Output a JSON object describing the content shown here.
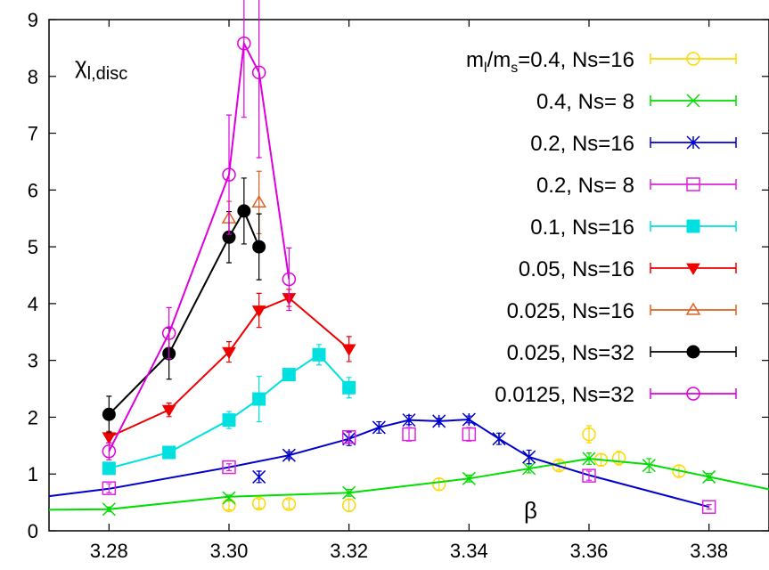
{
  "chart_data": {
    "type": "scatter",
    "title": "",
    "xlabel": "",
    "ylabel": "",
    "xlim": [
      3.27,
      3.39
    ],
    "ylim": [
      0,
      9
    ],
    "xticks": [
      3.28,
      3.3,
      3.32,
      3.34,
      3.36,
      3.38
    ],
    "xtick_labels": [
      "3.28",
      "3.30",
      "3.32",
      "3.34",
      "3.36",
      "3.38"
    ],
    "yticks": [
      0,
      1,
      2,
      3,
      4,
      5,
      6,
      7,
      8,
      9
    ],
    "ytick_labels": [
      "0",
      "1",
      "2",
      "3",
      "4",
      "5",
      "6",
      "7",
      "8",
      "9"
    ],
    "grid": false,
    "legend_position": "top-right",
    "annotations": {
      "ylabel_text": "χ",
      "ylabel_sub": "l,disc",
      "xlabel_text": "β"
    },
    "series": [
      {
        "name": "m_l/m_s=0.4, Ns=16",
        "legend": {
          "pre": "m",
          "sub1": "l",
          "mid": "/m",
          "sub2": "s",
          "post": "=0.4, Ns=16"
        },
        "color": "#ffd700",
        "marker": "circle-open",
        "line": false,
        "points": [
          {
            "x": 3.3,
            "y": 0.45,
            "err": 0.08
          },
          {
            "x": 3.305,
            "y": 0.48,
            "err": 0.08
          },
          {
            "x": 3.31,
            "y": 0.47,
            "err": 0.08
          },
          {
            "x": 3.32,
            "y": 0.45,
            "err": 0.1
          },
          {
            "x": 3.335,
            "y": 0.82,
            "err": 0.1
          },
          {
            "x": 3.355,
            "y": 1.15,
            "err": 0.08
          },
          {
            "x": 3.36,
            "y": 1.7,
            "err": 0.15
          },
          {
            "x": 3.362,
            "y": 1.25,
            "err": 0.1
          },
          {
            "x": 3.365,
            "y": 1.28,
            "err": 0.12
          },
          {
            "x": 3.375,
            "y": 1.05,
            "err": 0.1
          }
        ]
      },
      {
        "name": "0.4, Ns= 8",
        "color": "#00dd00",
        "marker": "x",
        "line": true,
        "curve": [
          [
            3.27,
            0.37
          ],
          [
            3.28,
            0.38
          ],
          [
            3.3,
            0.6
          ],
          [
            3.32,
            0.67
          ],
          [
            3.34,
            0.92
          ],
          [
            3.36,
            1.27
          ],
          [
            3.37,
            1.17
          ],
          [
            3.38,
            0.95
          ],
          [
            3.39,
            0.73
          ]
        ],
        "points": [
          {
            "x": 3.28,
            "y": 0.38,
            "err": 0.04
          },
          {
            "x": 3.3,
            "y": 0.58,
            "err": 0.05
          },
          {
            "x": 3.32,
            "y": 0.67,
            "err": 0.06
          },
          {
            "x": 3.34,
            "y": 0.92,
            "err": 0.06
          },
          {
            "x": 3.35,
            "y": 1.1,
            "err": 0.08
          },
          {
            "x": 3.36,
            "y": 1.27,
            "err": 0.1
          },
          {
            "x": 3.37,
            "y": 1.15,
            "err": 0.12
          },
          {
            "x": 3.38,
            "y": 0.95,
            "err": 0.06
          }
        ]
      },
      {
        "name": "0.2, Ns=16",
        "color": "#0000cc",
        "marker": "asterisk",
        "line": true,
        "curve": [
          [
            3.27,
            0.61
          ],
          [
            3.28,
            0.74
          ],
          [
            3.3,
            1.12
          ],
          [
            3.31,
            1.33
          ],
          [
            3.32,
            1.62
          ],
          [
            3.325,
            1.82
          ],
          [
            3.33,
            1.95
          ],
          [
            3.335,
            1.93
          ],
          [
            3.34,
            1.96
          ],
          [
            3.345,
            1.62
          ],
          [
            3.35,
            1.3
          ],
          [
            3.36,
            0.98
          ],
          [
            3.38,
            0.42
          ]
        ],
        "points": [
          {
            "x": 3.305,
            "y": 0.95,
            "err": 0.1
          },
          {
            "x": 3.31,
            "y": 1.33,
            "err": 0.06
          },
          {
            "x": 3.32,
            "y": 1.62,
            "err": 0.12
          },
          {
            "x": 3.325,
            "y": 1.82,
            "err": 0.1
          },
          {
            "x": 3.33,
            "y": 1.95,
            "err": 0.08
          },
          {
            "x": 3.335,
            "y": 1.93,
            "err": 0.05
          },
          {
            "x": 3.34,
            "y": 1.96,
            "err": 0.06
          },
          {
            "x": 3.345,
            "y": 1.62,
            "err": 0.1
          },
          {
            "x": 3.35,
            "y": 1.3,
            "err": 0.12
          }
        ]
      },
      {
        "name": "0.2, Ns= 8",
        "color": "#dd22dd",
        "marker": "square-open",
        "line": false,
        "points": [
          {
            "x": 3.28,
            "y": 0.75,
            "err": 0.08
          },
          {
            "x": 3.3,
            "y": 1.12,
            "err": 0.06
          },
          {
            "x": 3.32,
            "y": 1.65,
            "err": 0.08
          },
          {
            "x": 3.33,
            "y": 1.7,
            "err": 0.12
          },
          {
            "x": 3.34,
            "y": 1.7,
            "err": 0.12
          },
          {
            "x": 3.36,
            "y": 0.97,
            "err": 0.08
          },
          {
            "x": 3.38,
            "y": 0.42,
            "err": 0.04
          }
        ]
      },
      {
        "name": "0.1, Ns=16",
        "color": "#00e0e0",
        "marker": "square-filled",
        "line": true,
        "points": [
          {
            "x": 3.28,
            "y": 1.1,
            "err": 0.05
          },
          {
            "x": 3.29,
            "y": 1.38,
            "err": 0.05
          },
          {
            "x": 3.3,
            "y": 1.95,
            "err": 0.15
          },
          {
            "x": 3.305,
            "y": 2.32,
            "err": 0.4
          },
          {
            "x": 3.31,
            "y": 2.75,
            "err": 0.08
          },
          {
            "x": 3.315,
            "y": 3.1,
            "err": 0.18
          },
          {
            "x": 3.32,
            "y": 2.52,
            "err": 0.18
          }
        ]
      },
      {
        "name": "0.05, Ns=16",
        "color": "#ee0000",
        "marker": "triangle-down-filled",
        "line": true,
        "points": [
          {
            "x": 3.28,
            "y": 1.65,
            "err": 0.1
          },
          {
            "x": 3.29,
            "y": 2.13,
            "err": 0.12
          },
          {
            "x": 3.3,
            "y": 3.15,
            "err": 0.18
          },
          {
            "x": 3.305,
            "y": 3.88,
            "err": 0.3
          },
          {
            "x": 3.31,
            "y": 4.1,
            "err": 0.15
          },
          {
            "x": 3.32,
            "y": 3.2,
            "err": 0.22
          }
        ]
      },
      {
        "name": "0.025, Ns=16",
        "color": "#e06020",
        "marker": "triangle-up-open",
        "line": false,
        "points": [
          {
            "x": 3.3,
            "y": 5.5,
            "err": 0.3
          },
          {
            "x": 3.305,
            "y": 5.78,
            "err": 0.55
          }
        ]
      },
      {
        "name": "0.025, Ns=32",
        "color": "#000000",
        "marker": "circle-filled",
        "line": true,
        "points": [
          {
            "x": 3.28,
            "y": 2.05,
            "err": 0.32
          },
          {
            "x": 3.29,
            "y": 3.12,
            "err": 0.45
          },
          {
            "x": 3.3,
            "y": 5.17,
            "err": 0.45
          },
          {
            "x": 3.3025,
            "y": 5.63,
            "err": 0.58
          },
          {
            "x": 3.305,
            "y": 5.0,
            "err": 0.58
          }
        ]
      },
      {
        "name": "0.0125, Ns=32",
        "color": "#dd00dd",
        "marker": "circle-open",
        "line": true,
        "points": [
          {
            "x": 3.28,
            "y": 1.4,
            "err": 0.15
          },
          {
            "x": 3.29,
            "y": 3.48,
            "err": 0.45
          },
          {
            "x": 3.3,
            "y": 6.27,
            "err": 1.05
          },
          {
            "x": 3.3025,
            "y": 8.58,
            "err": 1.3
          },
          {
            "x": 3.305,
            "y": 8.07,
            "err": 1.5
          },
          {
            "x": 3.31,
            "y": 4.43,
            "err": 0.55
          }
        ]
      }
    ]
  }
}
